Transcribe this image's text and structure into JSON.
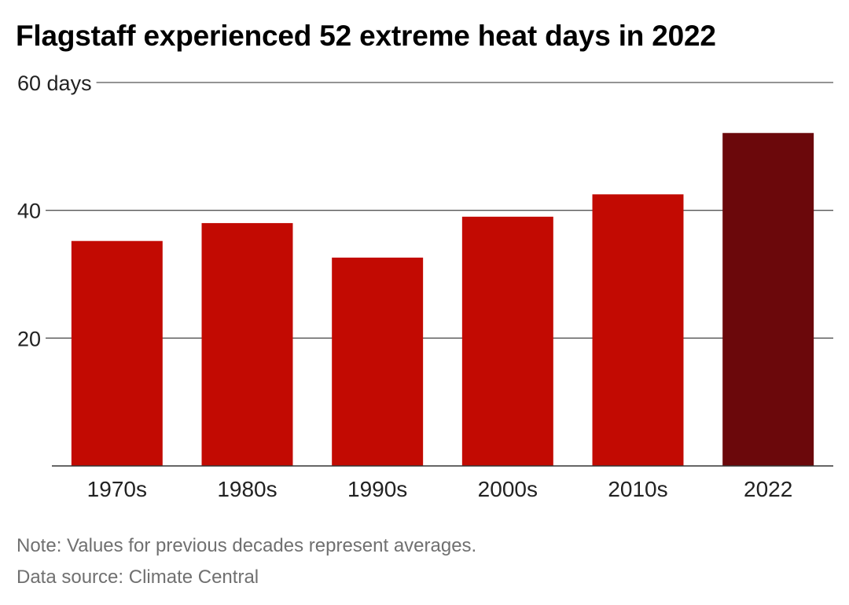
{
  "header": {
    "title": "Flagstaff experienced 52 extreme heat days in 2022"
  },
  "chart_data": {
    "type": "bar",
    "title": "Flagstaff experienced 52 extreme heat days in 2022",
    "xlabel": "",
    "ylabel": "",
    "categories": [
      "1970s",
      "1980s",
      "1990s",
      "2000s",
      "2010s",
      "2022"
    ],
    "values": [
      35.2,
      38,
      32.6,
      39,
      42.5,
      52.1
    ],
    "ylim": [
      0,
      60
    ],
    "yticks": [
      {
        "value": 20,
        "label": "20"
      },
      {
        "value": 40,
        "label": "40"
      },
      {
        "value": 60,
        "label": "60 days"
      }
    ],
    "grid": true,
    "colors": {
      "decade_bar": "#c20a02",
      "highlight_bar": "#6b080b",
      "gridline": "#555555",
      "baseline": "#333333"
    },
    "highlight_category": "2022"
  },
  "footer": {
    "note": "Note: Values for previous decades represent averages.",
    "source": "Data source: Climate Central"
  }
}
